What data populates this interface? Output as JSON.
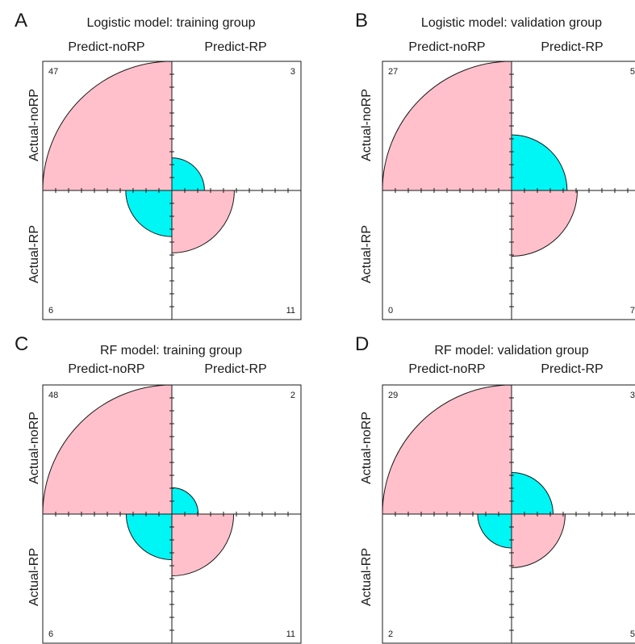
{
  "colors": {
    "pink": "#ffc0cb",
    "cyan": "#00f5f5",
    "stroke": "#1a1a1a"
  },
  "chart_data": [
    {
      "type": "fourfold",
      "letter": "A",
      "title": "Logistic model: training group",
      "col_labels": [
        "Predict-noRP",
        "Predict-RP"
      ],
      "row_labels": [
        "Actual-noRP",
        "Actual-RP"
      ],
      "cells": {
        "tl": 47,
        "tr": 3,
        "bl": 6,
        "br": 11
      }
    },
    {
      "type": "fourfold",
      "letter": "B",
      "title": "Logistic model: validation group",
      "col_labels": [
        "Predict-noRP",
        "Predict-RP"
      ],
      "row_labels": [
        "Actual-noRP",
        "Actual-RP"
      ],
      "cells": {
        "tl": 27,
        "tr": 5,
        "bl": 0,
        "br": 7
      }
    },
    {
      "type": "fourfold",
      "letter": "C",
      "title": "RF model: training group",
      "col_labels": [
        "Predict-noRP",
        "Predict-RP"
      ],
      "row_labels": [
        "Actual-noRP",
        "Actual-RP"
      ],
      "cells": {
        "tl": 48,
        "tr": 2,
        "bl": 6,
        "br": 11
      }
    },
    {
      "type": "fourfold",
      "letter": "D",
      "title": "RF model: validation group",
      "col_labels": [
        "Predict-noRP",
        "Predict-RP"
      ],
      "row_labels": [
        "Actual-noRP",
        "Actual-RP"
      ],
      "cells": {
        "tl": 29,
        "tr": 3,
        "bl": 2,
        "br": 5
      }
    }
  ]
}
